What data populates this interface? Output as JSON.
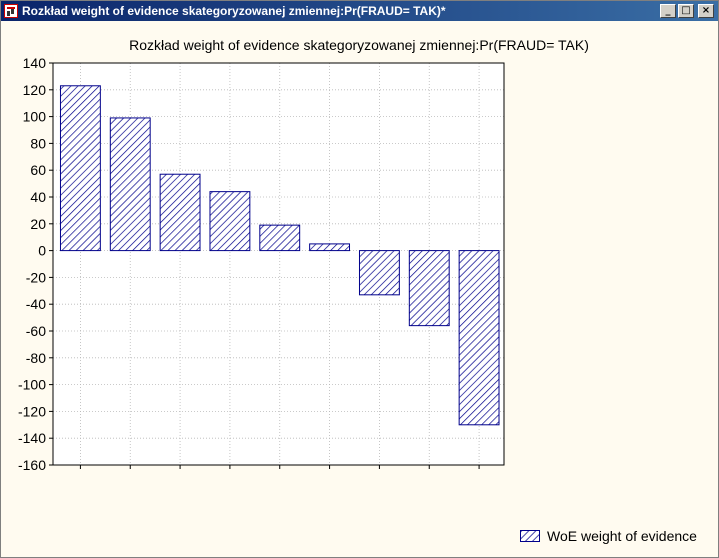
{
  "window": {
    "title": "Rozkład weight of evidence skategoryzowanej zmiennej:Pr(FRAUD= TAK)*",
    "buttons": {
      "minimize": "_",
      "maximize": "□",
      "close": "×"
    }
  },
  "chart_data": {
    "type": "bar",
    "title": "Rozkład weight of evidence skategoryzowanej zmiennej:Pr(FRAUD= TAK)",
    "xlabel": "",
    "ylabel": "",
    "ylim": [
      -160,
      140
    ],
    "yticks": [
      140,
      120,
      100,
      80,
      60,
      40,
      20,
      0,
      -20,
      -40,
      -60,
      -80,
      -100,
      -120,
      -140,
      -160
    ],
    "grid": true,
    "legend_position": "bottom-right",
    "bar_fill": "hatched",
    "color": "#00008b",
    "categories": [
      "",
      "",
      "",
      "",
      "",
      "",
      "",
      "",
      ""
    ],
    "series": [
      {
        "name": "WoE weight of evidence",
        "values": [
          123,
          99,
          57,
          44,
          19,
          5,
          -33,
          -56,
          -130
        ]
      }
    ]
  }
}
